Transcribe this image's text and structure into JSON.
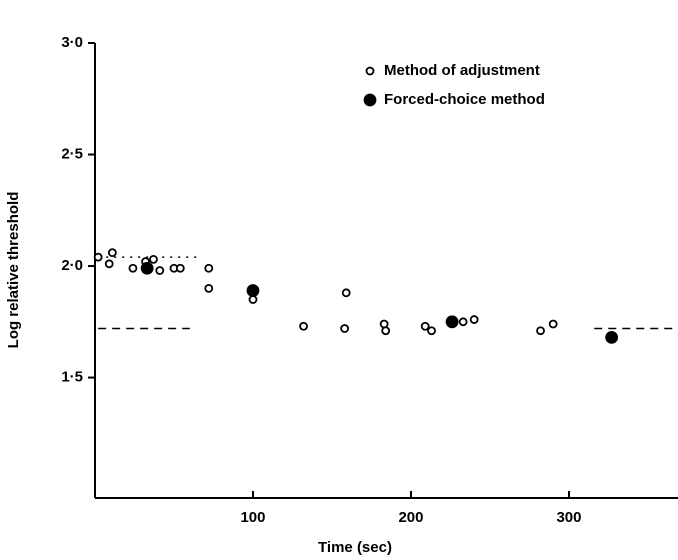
{
  "chart_data": {
    "type": "scatter",
    "x_label": "Time (sec)",
    "y_label": "Log relative threshold",
    "xlim": [
      0,
      369
    ],
    "xticks": [
      100,
      200,
      300
    ],
    "ylim": [
      0.96,
      3.0
    ],
    "yticks": [
      {
        "value": 1.5,
        "label": "1·5"
      },
      {
        "value": 2.0,
        "label": "2·0"
      },
      {
        "value": 2.5,
        "label": "2·5"
      },
      {
        "value": 3.0,
        "label": "3·0"
      }
    ],
    "series": [
      {
        "name": "Method of adjustment",
        "marker": "open",
        "color": "#000000",
        "x": [
          2,
          9,
          11,
          24,
          32,
          37,
          41,
          50,
          54,
          72,
          72,
          100,
          132,
          158,
          159,
          183,
          184,
          209,
          213,
          233,
          240,
          282,
          290
        ],
        "values": [
          2.04,
          2.01,
          2.06,
          1.99,
          2.02,
          2.03,
          1.98,
          1.99,
          1.99,
          1.9,
          1.99,
          1.85,
          1.73,
          1.72,
          1.88,
          1.74,
          1.71,
          1.73,
          1.71,
          1.75,
          1.76,
          1.71,
          1.74
        ]
      },
      {
        "name": "Forced-choice method",
        "marker": "filled",
        "color": "#000000",
        "x": [
          33,
          100,
          226,
          327
        ],
        "values": [
          1.99,
          1.89,
          1.75,
          1.68
        ]
      }
    ],
    "reference_lines": [
      {
        "style": "dotted",
        "y": 2.04,
        "x": [
          2,
          65
        ]
      },
      {
        "style": "dashed",
        "y": 1.72,
        "x": [
          2,
          60
        ]
      },
      {
        "style": "dashed",
        "y": 1.72,
        "x": [
          316,
          369
        ]
      }
    ],
    "legend": "top-right"
  }
}
